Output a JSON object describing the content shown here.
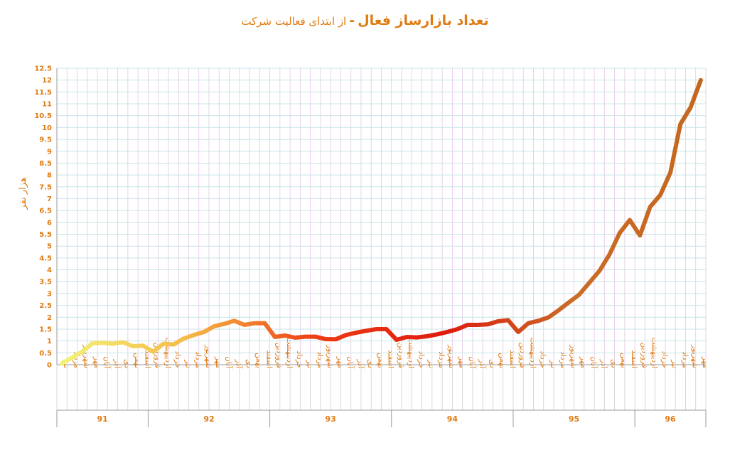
{
  "title": {
    "main": "تعداد بازارساز فعال",
    "separator": "-",
    "subtitle": "از ابتدای فعالیت شرکت"
  },
  "colors": {
    "text": "#e07b12",
    "gridH": "#c8e4e8",
    "gridV": "#e3c6e6",
    "axis": "#9a9a9a",
    "lineGradient": [
      "#f3f57a",
      "#f5bb48",
      "#ee3d14",
      "#de1b0e",
      "#c96d28",
      "#c4661e"
    ]
  },
  "chart_data": {
    "type": "line",
    "ylabel": "هزار نفر",
    "ylim": [
      0,
      12.5
    ],
    "yticks": [
      "0",
      "0.5",
      "1",
      "1.5",
      "2",
      "2.5",
      "3",
      "3.5",
      "4",
      "4.5",
      "5",
      "5.5",
      "6",
      "6.5",
      "7",
      "7.5",
      "8",
      "8.5",
      "9",
      "9.5",
      "10",
      "10.5",
      "11",
      "11.5",
      "12",
      "12.5"
    ],
    "grid": true,
    "legend": "none",
    "categories": [
      "تیر",
      "مرداد",
      "شهریور",
      "مهر",
      "آبان",
      "آذر",
      "دی",
      "بهمن",
      "اسفند",
      "فروردین",
      "اردیبهشت",
      "خرداد",
      "تیر",
      "مرداد",
      "شهریور",
      "مهر",
      "آبان",
      "آذر",
      "دی",
      "بهمن",
      "اسفند",
      "فروردین",
      "اردیبهشت",
      "خرداد",
      "تیر",
      "مرداد",
      "شهریور",
      "مهر",
      "آبان",
      "آذر",
      "دی",
      "بهمن",
      "اسفند",
      "فروردین",
      "اردیبهشت",
      "خرداد",
      "تیر",
      "مرداد",
      "شهریور",
      "مهر",
      "آبان",
      "آذر",
      "دی",
      "بهمن",
      "اسفند",
      "فروردین",
      "اردیبهشت",
      "خرداد",
      "تیر",
      "مرداد",
      "شهریور",
      "مهر",
      "آبان",
      "آذر",
      "دی",
      "بهمن",
      "اسفند",
      "فروردین",
      "اردیبهشت",
      "خرداد",
      "تیر",
      "مرداد",
      "شهریور",
      "مهر"
    ],
    "groups": [
      {
        "label": "91",
        "count": 9
      },
      {
        "label": "92",
        "count": 12
      },
      {
        "label": "93",
        "count": 12
      },
      {
        "label": "94",
        "count": 12
      },
      {
        "label": "95",
        "count": 12
      },
      {
        "label": "96",
        "count": 7
      }
    ],
    "values": [
      0.05,
      0.3,
      0.55,
      0.9,
      0.93,
      0.88,
      0.95,
      0.78,
      0.8,
      0.55,
      0.88,
      0.85,
      1.1,
      1.25,
      1.38,
      1.62,
      1.72,
      1.85,
      1.68,
      1.75,
      1.75,
      1.17,
      1.23,
      1.14,
      1.18,
      1.18,
      1.08,
      1.07,
      1.25,
      1.35,
      1.43,
      1.5,
      1.5,
      1.05,
      1.17,
      1.15,
      1.2,
      1.28,
      1.38,
      1.5,
      1.68,
      1.68,
      1.7,
      1.83,
      1.88,
      1.38,
      1.75,
      1.85,
      2.0,
      2.3,
      2.63,
      2.95,
      3.45,
      3.95,
      4.65,
      5.55,
      6.1,
      5.45,
      6.65,
      7.15,
      8.1,
      10.15,
      10.85,
      12.0
    ]
  }
}
